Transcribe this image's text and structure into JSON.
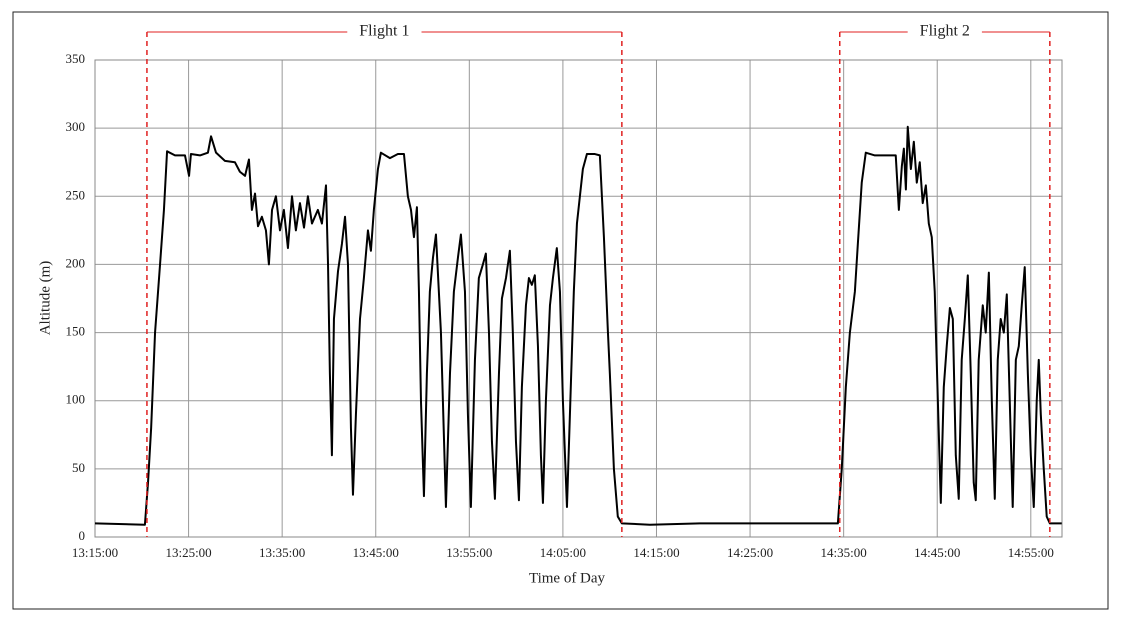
{
  "chart_data": {
    "type": "line",
    "x_label": "Time of Day",
    "y_label": "Altitude (m)",
    "x": [
      "13:15:00",
      "13:20:20",
      "13:20:40",
      "13:21:00",
      "13:21:25",
      "13:21:57",
      "13:22:22",
      "13:22:42",
      "13:23:33",
      "13:24:37",
      "13:25:03",
      "13:25:15",
      "13:26:13",
      "13:27:04",
      "13:27:24",
      "13:27:56",
      "13:28:53",
      "13:29:57",
      "13:30:29",
      "13:31:02",
      "13:31:27",
      "13:31:46",
      "13:32:06",
      "13:32:25",
      "13:32:50",
      "13:33:16",
      "13:33:35",
      "13:33:55",
      "13:34:20",
      "13:34:46",
      "13:35:11",
      "13:35:37",
      "13:36:03",
      "13:36:28",
      "13:36:54",
      "13:37:20",
      "13:37:45",
      "13:38:11",
      "13:38:49",
      "13:39:15",
      "13:39:41",
      "13:39:54",
      "13:40:06",
      "13:40:19",
      "13:40:32",
      "13:40:58",
      "13:41:23",
      "13:41:43",
      "13:42:02",
      "13:42:21",
      "13:42:34",
      "13:42:53",
      "13:43:19",
      "13:43:44",
      "13:44:10",
      "13:44:29",
      "13:44:48",
      "13:45:14",
      "13:45:33",
      "13:46:31",
      "13:47:22",
      "13:48:01",
      "13:48:26",
      "13:48:46",
      "13:49:05",
      "13:49:24",
      "13:49:37",
      "13:49:50",
      "13:50:09",
      "13:50:28",
      "13:50:47",
      "13:51:07",
      "13:51:26",
      "13:51:58",
      "13:52:30",
      "13:52:56",
      "13:53:21",
      "13:53:47",
      "13:54:06",
      "13:54:32",
      "13:54:51",
      "13:55:10",
      "13:55:36",
      "13:56:01",
      "13:56:27",
      "13:56:46",
      "13:57:06",
      "13:57:25",
      "13:57:44",
      "13:58:10",
      "13:58:29",
      "13:58:55",
      "13:59:20",
      "13:59:39",
      "13:59:59",
      "14:00:18",
      "14:00:37",
      "14:01:03",
      "14:01:22",
      "14:01:41",
      "14:02:00",
      "14:02:20",
      "14:02:39",
      "14:02:52",
      "14:03:11",
      "14:03:37",
      "14:03:56",
      "14:04:21",
      "14:04:41",
      "14:05:00",
      "14:05:26",
      "14:05:45",
      "14:06:10",
      "14:06:30",
      "14:06:49",
      "14:07:08",
      "14:07:34",
      "14:08:25",
      "14:08:57",
      "14:09:23",
      "14:09:48",
      "14:10:01",
      "14:10:27",
      "14:10:52",
      "14:11:18",
      "14:14:18",
      "14:19:38",
      "14:24:59",
      "14:30:19",
      "14:34:23",
      "14:34:48",
      "14:35:14",
      "14:35:40",
      "14:36:12",
      "14:36:31",
      "14:36:56",
      "14:37:22",
      "14:38:20",
      "14:39:24",
      "14:40:34",
      "14:40:54",
      "14:41:13",
      "14:41:26",
      "14:41:39",
      "14:41:51",
      "14:42:11",
      "14:42:30",
      "14:42:49",
      "14:43:08",
      "14:43:27",
      "14:43:47",
      "14:44:06",
      "14:44:25",
      "14:44:44",
      "14:45:04",
      "14:45:23",
      "14:45:42",
      "14:46:01",
      "14:46:21",
      "14:46:40",
      "14:46:59",
      "14:47:18",
      "14:47:37",
      "14:47:57",
      "14:48:16",
      "14:48:35",
      "14:48:54",
      "14:49:07",
      "14:49:26",
      "14:49:52",
      "14:50:11",
      "14:50:31",
      "14:50:50",
      "14:51:09",
      "14:51:28",
      "14:51:47",
      "14:52:07",
      "14:52:26",
      "14:52:45",
      "14:53:04",
      "14:53:24",
      "14:53:43",
      "14:54:02",
      "14:54:21",
      "14:54:41",
      "14:55:00",
      "14:55:19",
      "14:55:38",
      "14:55:51",
      "14:56:04",
      "14:56:23",
      "14:56:42",
      "14:57:02",
      "14:58:18"
    ],
    "values": [
      10,
      9,
      40,
      80,
      150,
      200,
      240,
      283,
      280,
      280,
      265,
      281,
      280,
      282,
      294,
      282,
      276,
      275,
      268,
      265,
      277,
      240,
      252,
      228,
      235,
      225,
      200,
      240,
      250,
      225,
      240,
      212,
      250,
      225,
      245,
      227,
      250,
      230,
      240,
      230,
      258,
      200,
      120,
      60,
      160,
      195,
      215,
      235,
      200,
      80,
      31,
      90,
      160,
      190,
      225,
      210,
      240,
      270,
      282,
      278,
      281,
      281,
      250,
      240,
      220,
      242,
      180,
      100,
      30,
      120,
      180,
      205,
      222,
      150,
      22,
      120,
      180,
      205,
      222,
      180,
      90,
      22,
      130,
      190,
      200,
      208,
      150,
      70,
      28,
      120,
      175,
      190,
      210,
      150,
      70,
      27,
      110,
      170,
      190,
      185,
      192,
      140,
      60,
      25,
      100,
      170,
      190,
      212,
      180,
      100,
      22,
      90,
      180,
      230,
      250,
      270,
      281,
      281,
      280,
      220,
      152,
      120,
      50,
      15,
      10,
      9,
      10,
      10,
      10,
      10,
      50,
      110,
      150,
      180,
      215,
      260,
      282,
      280,
      280,
      280,
      240,
      272,
      285,
      255,
      301,
      270,
      290,
      260,
      275,
      245,
      258,
      230,
      220,
      180,
      100,
      25,
      110,
      140,
      168,
      160,
      60,
      28,
      130,
      160,
      192,
      120,
      40,
      27,
      130,
      170,
      150,
      194,
      100,
      28,
      130,
      160,
      150,
      178,
      100,
      22,
      130,
      140,
      170,
      198,
      120,
      60,
      22,
      100,
      130,
      90,
      50,
      15,
      10,
      10
    ],
    "color": "#000000",
    "xlim": [
      "13:15:00",
      "14:58:20"
    ],
    "xticks": [
      "13:15:00",
      "13:25:00",
      "13:35:00",
      "13:45:00",
      "13:55:00",
      "14:05:00",
      "14:15:00",
      "14:25:00",
      "14:35:00",
      "14:45:00",
      "14:55:00"
    ],
    "ylim": [
      0,
      350
    ],
    "yticks": [
      0,
      50,
      100,
      150,
      200,
      250,
      300,
      350
    ],
    "grid": true,
    "annotations": [
      {
        "label": "Flight 1",
        "start": "13:20:33",
        "end": "14:11:18",
        "color": "#e02020"
      },
      {
        "label": "Flight 2",
        "start": "14:34:35",
        "end": "14:57:02",
        "color": "#e02020"
      }
    ]
  }
}
